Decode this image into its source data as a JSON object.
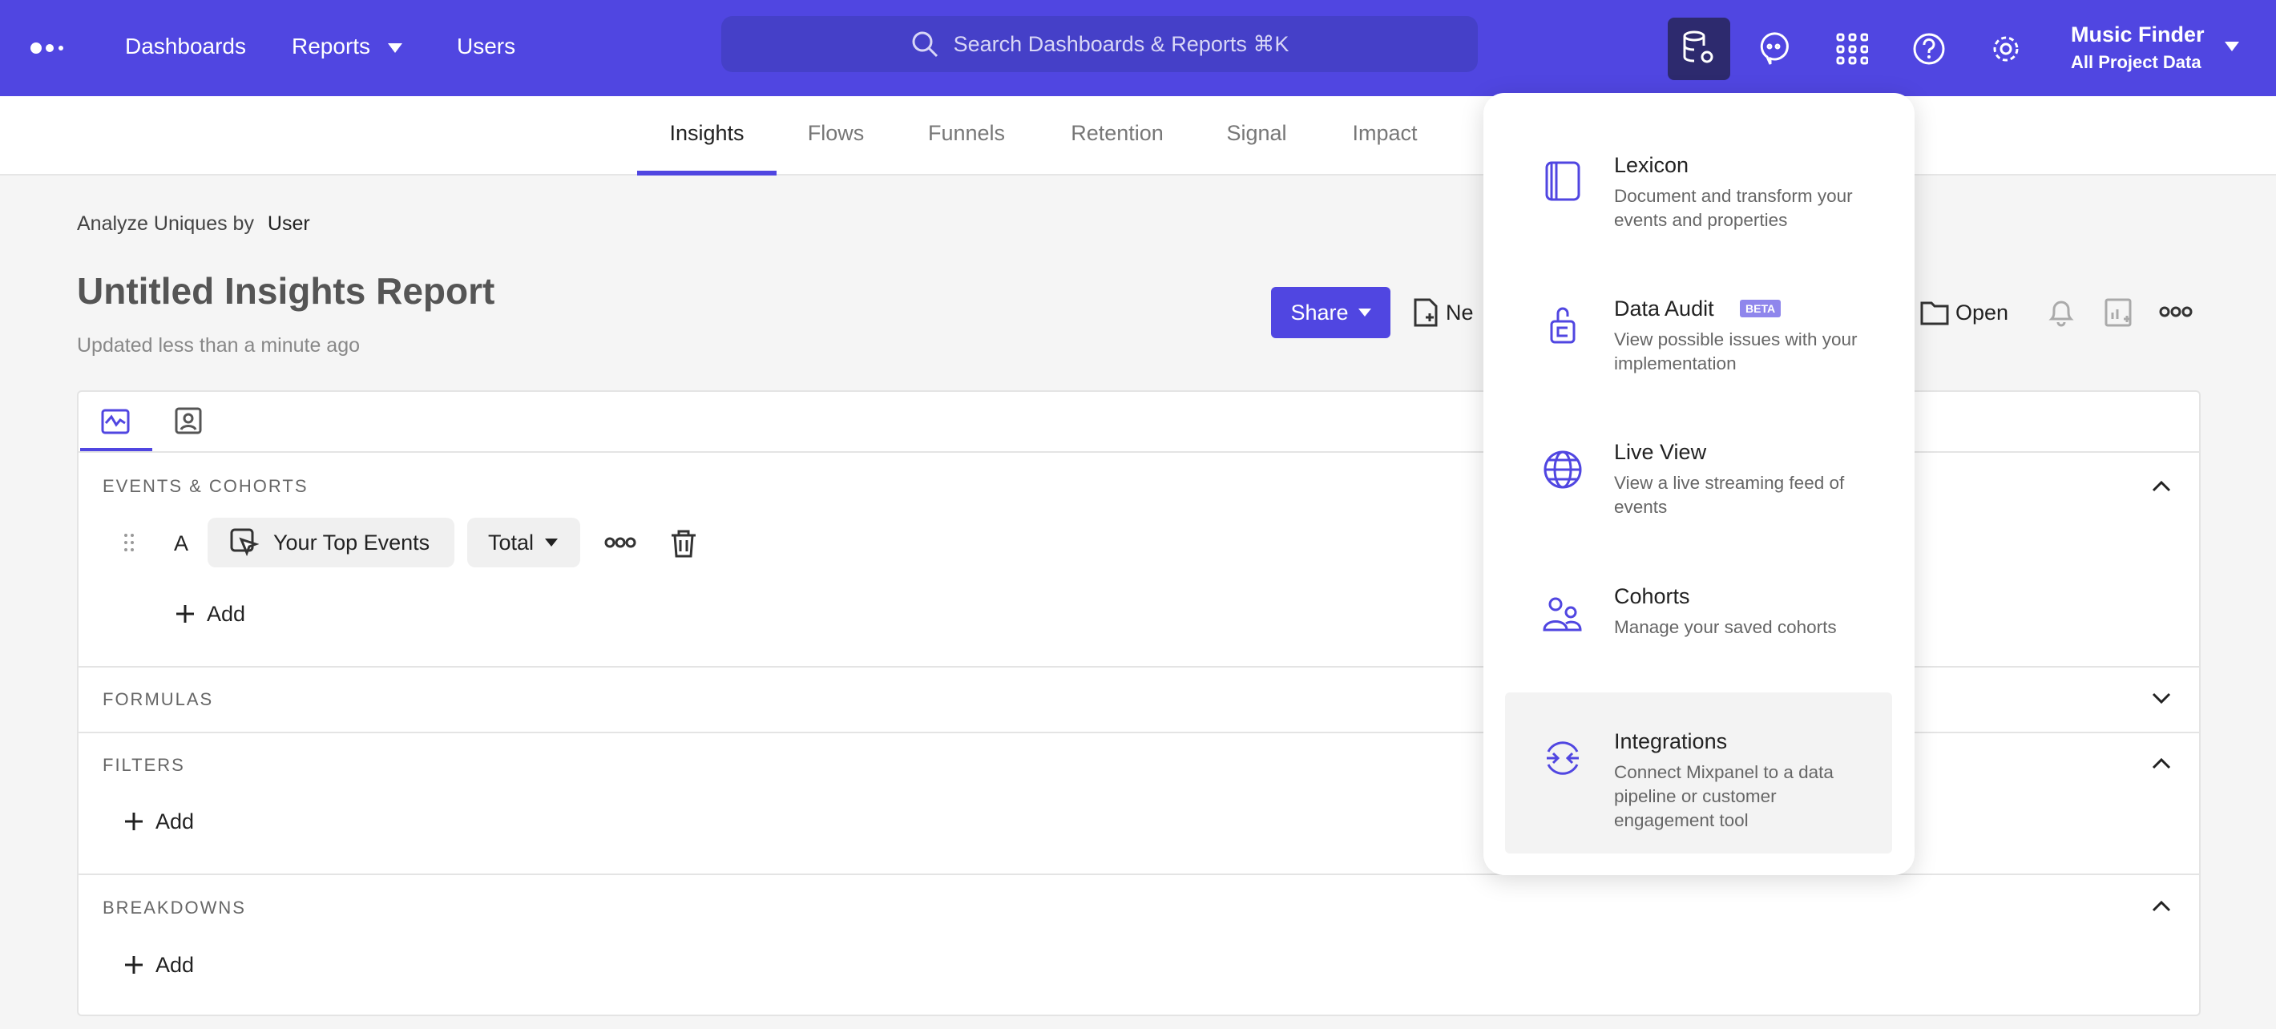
{
  "topbar": {
    "nav": [
      "Dashboards",
      "Reports",
      "Users"
    ],
    "search_placeholder": "Search Dashboards & Reports ⌘K",
    "icons": [
      "data-management-icon",
      "chat-icon",
      "apps-grid-icon",
      "help-icon",
      "settings-icon"
    ],
    "project_name": "Music Finder",
    "project_scope": "All Project Data"
  },
  "subnav": {
    "tabs": [
      "Insights",
      "Flows",
      "Funnels",
      "Retention",
      "Signal",
      "Impact"
    ],
    "active": "Insights"
  },
  "report": {
    "analyze_label": "Analyze Uniques by",
    "analyze_value": "User",
    "title": "Untitled Insights Report",
    "updated": "Updated less than a minute ago",
    "share": "Share",
    "new_partial": "Ne",
    "open": "Open"
  },
  "query": {
    "events_header": "EVENTS & COHORTS",
    "row_letter": "A",
    "event": "Your Top Events",
    "measure": "Total",
    "add": "Add",
    "formulas_header": "FORMULAS",
    "filters_header": "FILTERS",
    "breakdowns_header": "BREAKDOWNS"
  },
  "dropdown": {
    "items": [
      {
        "title": "Lexicon",
        "desc": "Document and transform your events and properties"
      },
      {
        "title": "Data Audit",
        "badge": "BETA",
        "desc": "View possible issues with your implementation"
      },
      {
        "title": "Live View",
        "desc": "View a live streaming feed of events"
      },
      {
        "title": "Cohorts",
        "desc": "Manage your saved cohorts"
      },
      {
        "title": "Integrations",
        "desc": "Connect Mixpanel to a data pipeline or customer engagement tool"
      }
    ]
  },
  "colors": {
    "brand": "#5046e1",
    "beta_badge": "#8f86ec"
  }
}
